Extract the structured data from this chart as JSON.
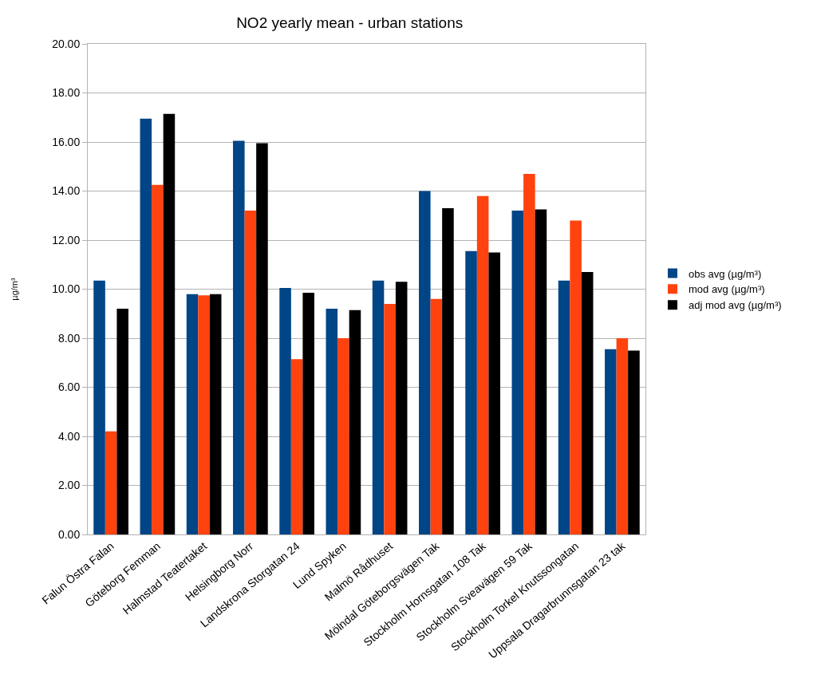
{
  "chart_data": {
    "type": "bar",
    "title": "NO2 yearly mean - urban stations",
    "ylabel": "µg/m³",
    "categories": [
      "Falun Östra Falan",
      "Göteborg Femman",
      "Halmstad Teatertaket",
      "Helsingborg Norr",
      "Landskrona Storgatan 24",
      "Lund Spyken",
      "Malmö Rådhuset",
      "Mölndal Göteborgsvägen Tak",
      "Stockholm Hornsgatan 108 Tak",
      "Stockholm Sveavägen 59 Tak",
      "Stockholm Torkel Knutssongatan",
      "Uppsala Dragarbrunnsgatan 23 tak"
    ],
    "series": [
      {
        "name": "obs avg (µg/m³)",
        "color": "#004586",
        "values": [
          10.35,
          16.95,
          9.8,
          16.05,
          10.05,
          9.2,
          10.35,
          14.0,
          11.55,
          13.2,
          10.35,
          7.55
        ]
      },
      {
        "name": "mod avg (µg/m³)",
        "color": "#ff420e",
        "values": [
          4.2,
          14.25,
          9.75,
          13.2,
          7.15,
          8.0,
          9.4,
          9.6,
          13.8,
          14.7,
          12.8,
          8.0
        ]
      },
      {
        "name": "adj mod avg (µg/m³)",
        "color": "#000000",
        "values": [
          9.2,
          17.15,
          9.8,
          15.95,
          9.85,
          9.15,
          10.3,
          13.3,
          11.5,
          13.25,
          10.7,
          7.5
        ]
      }
    ],
    "ylim": [
      0,
      20
    ],
    "yticks": [
      {
        "value": 0,
        "label": "0.00"
      },
      {
        "value": 2,
        "label": "2.00"
      },
      {
        "value": 4,
        "label": "4.00"
      },
      {
        "value": 6,
        "label": "6.00"
      },
      {
        "value": 8,
        "label": "8.00"
      },
      {
        "value": 10,
        "label": "10.00"
      },
      {
        "value": 12,
        "label": "12.00"
      },
      {
        "value": 14,
        "label": "14.00"
      },
      {
        "value": 16,
        "label": "16.00"
      },
      {
        "value": 18,
        "label": "18.00"
      },
      {
        "value": 20,
        "label": "20.00"
      }
    ],
    "grid": "y",
    "legend": "right"
  }
}
